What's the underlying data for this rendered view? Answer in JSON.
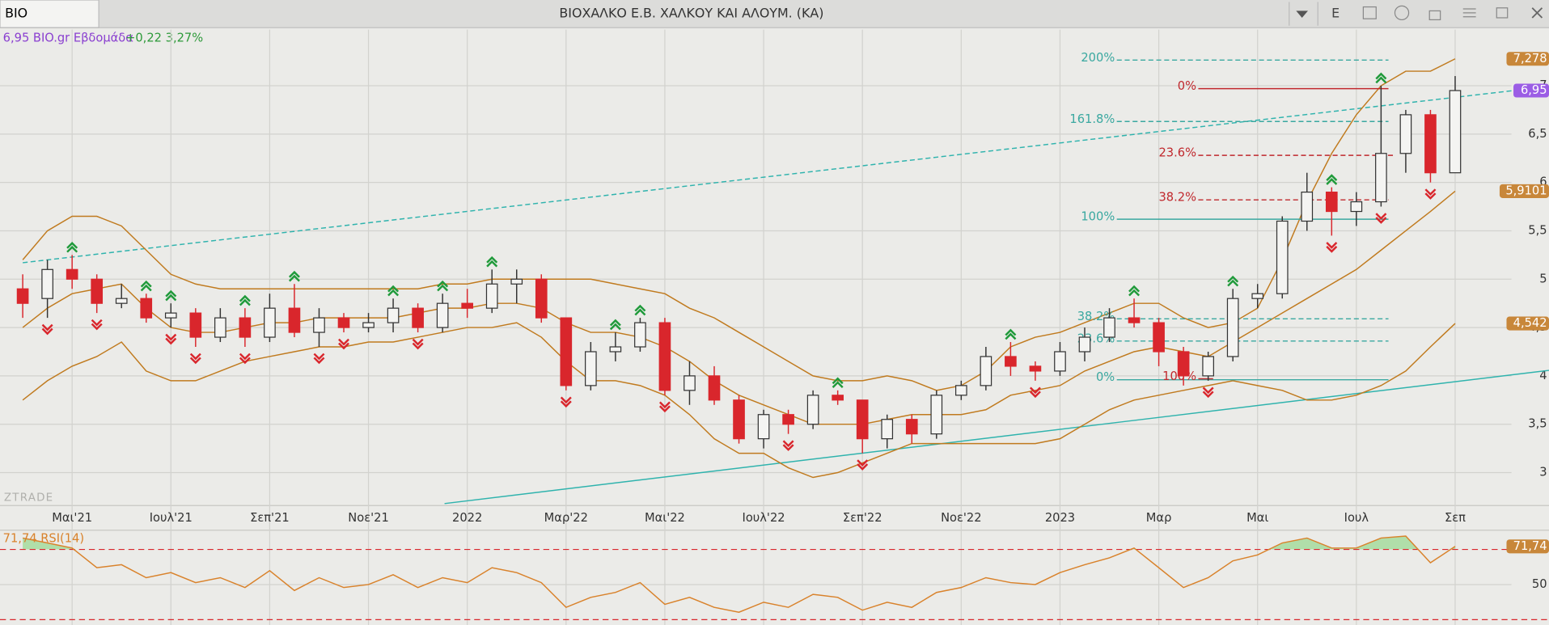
{
  "header": {
    "symbol": "BIO",
    "title": "ΒΙΟΧΑΛΚΟ Ε.Β. ΧΑΛΚΟΥ  ΚΑΙ  ΑΛΟΥΜ. (ΚΑ)",
    "button": "E"
  },
  "info": {
    "quote": "6,95 BIO.gr Εβδομάδα",
    "change": "+0,22 3,27%"
  },
  "watermark": "ZTRADE",
  "chart_data": {
    "type": "candlestick",
    "categories": [
      null,
      null,
      "Μαι'21",
      null,
      null,
      null,
      "Ιουλ'21",
      null,
      null,
      null,
      "Σεπ'21",
      null,
      null,
      null,
      "Νοε'21",
      null,
      null,
      null,
      "2022",
      null,
      null,
      null,
      "Μαρ'22",
      null,
      null,
      null,
      "Μαι'22",
      null,
      null,
      null,
      "Ιουλ'22",
      null,
      null,
      null,
      "Σεπ'22",
      null,
      null,
      null,
      "Νοε'22",
      null,
      null,
      null,
      "2023",
      null,
      null,
      null,
      "Μαρ",
      null,
      null,
      null,
      "Μαι",
      null,
      null,
      null,
      "Ιουλ",
      null,
      null,
      null,
      "Σεπ"
    ],
    "open": [
      4.9,
      4.8,
      5.1,
      5.0,
      4.75,
      4.8,
      4.6,
      4.65,
      4.4,
      4.6,
      4.4,
      4.7,
      4.45,
      4.6,
      4.5,
      4.55,
      4.7,
      4.5,
      4.75,
      4.7,
      4.95,
      5.0,
      4.6,
      3.9,
      4.25,
      4.3,
      4.55,
      3.85,
      4.0,
      3.75,
      3.35,
      3.6,
      3.5,
      3.8,
      3.75,
      3.35,
      3.55,
      3.4,
      3.8,
      3.9,
      4.2,
      4.1,
      4.05,
      4.25,
      4.4,
      4.6,
      4.55,
      4.25,
      4.0,
      4.2,
      4.8,
      4.85,
      5.6,
      5.9,
      5.7,
      5.8,
      6.3,
      6.7,
      6.1
    ],
    "high": [
      5.05,
      5.2,
      5.25,
      5.05,
      4.95,
      4.85,
      4.75,
      4.7,
      4.7,
      4.7,
      4.85,
      4.95,
      4.7,
      4.65,
      4.65,
      4.8,
      4.75,
      4.85,
      4.9,
      5.1,
      5.1,
      5.05,
      4.6,
      4.35,
      4.45,
      4.6,
      4.6,
      4.15,
      4.1,
      3.8,
      3.65,
      3.65,
      3.85,
      3.85,
      3.75,
      3.6,
      3.6,
      3.85,
      3.95,
      4.3,
      4.35,
      4.15,
      4.35,
      4.5,
      4.7,
      4.8,
      4.6,
      4.3,
      4.25,
      4.9,
      4.95,
      5.65,
      6.1,
      5.95,
      5.9,
      7.0,
      6.75,
      6.75,
      7.1
    ],
    "low": [
      4.6,
      4.6,
      4.9,
      4.65,
      4.7,
      4.55,
      4.5,
      4.3,
      4.35,
      4.3,
      4.35,
      4.4,
      4.3,
      4.45,
      4.45,
      4.45,
      4.45,
      4.45,
      4.6,
      4.65,
      4.75,
      4.55,
      3.85,
      3.85,
      4.15,
      4.25,
      3.8,
      3.7,
      3.7,
      3.3,
      3.25,
      3.4,
      3.45,
      3.7,
      3.2,
      3.25,
      3.3,
      3.35,
      3.75,
      3.85,
      4.0,
      3.95,
      4.0,
      4.15,
      4.35,
      4.5,
      4.1,
      3.9,
      3.95,
      4.15,
      4.7,
      4.8,
      5.5,
      5.45,
      5.55,
      5.75,
      6.1,
      6.0,
      6.1
    ],
    "close": [
      4.75,
      5.1,
      5.0,
      4.75,
      4.8,
      4.6,
      4.65,
      4.4,
      4.6,
      4.4,
      4.7,
      4.45,
      4.6,
      4.5,
      4.55,
      4.7,
      4.5,
      4.75,
      4.7,
      4.95,
      5.0,
      4.6,
      3.9,
      4.25,
      4.3,
      4.55,
      3.85,
      4.0,
      3.75,
      3.35,
      3.6,
      3.5,
      3.8,
      3.75,
      3.35,
      3.55,
      3.4,
      3.8,
      3.9,
      4.2,
      4.1,
      4.05,
      4.25,
      4.4,
      4.6,
      4.55,
      4.25,
      4.0,
      4.2,
      4.8,
      4.85,
      5.6,
      5.9,
      5.7,
      5.8,
      6.3,
      6.7,
      6.1,
      6.95
    ],
    "up_color": "#f4f4f2",
    "down_color": "#d9262c",
    "bollinger": {
      "color": "#c07a1e",
      "upper": [
        5.2,
        5.5,
        5.65,
        5.65,
        5.55,
        5.3,
        5.05,
        4.95,
        4.9,
        4.9,
        4.9,
        4.9,
        4.9,
        4.9,
        4.9,
        4.9,
        4.9,
        4.95,
        4.95,
        5.0,
        5.0,
        5.0,
        5.0,
        5.0,
        4.95,
        4.9,
        4.85,
        4.7,
        4.6,
        4.45,
        4.3,
        4.15,
        4.0,
        3.95,
        3.95,
        4.0,
        3.95,
        3.85,
        3.9,
        4.05,
        4.3,
        4.4,
        4.45,
        4.55,
        4.65,
        4.75,
        4.75,
        4.6,
        4.5,
        4.55,
        4.7,
        5.2,
        5.8,
        6.3,
        6.7,
        7.0,
        7.15,
        7.15,
        7.278
      ],
      "middle": [
        4.5,
        4.7,
        4.85,
        4.9,
        4.95,
        4.7,
        4.5,
        4.45,
        4.45,
        4.5,
        4.55,
        4.55,
        4.6,
        4.6,
        4.6,
        4.6,
        4.65,
        4.7,
        4.7,
        4.75,
        4.75,
        4.7,
        4.55,
        4.45,
        4.45,
        4.4,
        4.3,
        4.15,
        3.95,
        3.8,
        3.7,
        3.6,
        3.5,
        3.5,
        3.5,
        3.55,
        3.6,
        3.6,
        3.6,
        3.65,
        3.8,
        3.85,
        3.9,
        4.05,
        4.15,
        4.25,
        4.3,
        4.25,
        4.2,
        4.35,
        4.5,
        4.65,
        4.8,
        4.95,
        5.1,
        5.3,
        5.5,
        5.7,
        5.9101
      ],
      "lower": [
        3.75,
        3.95,
        4.1,
        4.2,
        4.35,
        4.05,
        3.95,
        3.95,
        4.05,
        4.15,
        4.2,
        4.25,
        4.3,
        4.3,
        4.35,
        4.35,
        4.4,
        4.45,
        4.5,
        4.5,
        4.55,
        4.4,
        4.15,
        3.95,
        3.95,
        3.9,
        3.8,
        3.6,
        3.35,
        3.2,
        3.2,
        3.05,
        2.95,
        3.0,
        3.1,
        3.2,
        3.3,
        3.3,
        3.3,
        3.3,
        3.3,
        3.3,
        3.35,
        3.5,
        3.65,
        3.75,
        3.8,
        3.85,
        3.9,
        3.95,
        3.9,
        3.85,
        3.75,
        3.75,
        3.8,
        3.9,
        4.05,
        4.3,
        4.542
      ]
    },
    "up_markers": [
      2,
      5,
      6,
      9,
      11,
      15,
      17,
      19,
      24,
      25,
      33,
      40,
      45,
      49,
      53,
      55
    ],
    "down_markers": [
      1,
      3,
      6,
      7,
      9,
      12,
      13,
      16,
      22,
      26,
      31,
      34,
      41,
      48,
      53,
      55,
      57
    ],
    "trendlines": [
      {
        "from": {
          "index": 0,
          "value": 5.17
        },
        "to": {
          "index": 58,
          "value": 6.88
        },
        "color": "#2fb3ad",
        "dashed": true
      },
      {
        "from": {
          "index": 17.08,
          "value": 2.68
        },
        "to": {
          "index": 58,
          "value": 3.94
        },
        "color": "#2fb3ad",
        "dashed": false
      }
    ],
    "fib_levels": [
      {
        "label": "200%",
        "value": 7.265,
        "from": 44.3,
        "to": 55.3,
        "color": "#3aa8a0",
        "dashed": true
      },
      {
        "label": "0%",
        "value": 6.97,
        "from": 47.6,
        "to": 55.3,
        "color": "#c0282d",
        "dashed": false
      },
      {
        "label": "161.8%",
        "value": 6.63,
        "from": 44.3,
        "to": 55.3,
        "color": "#3aa8a0",
        "dashed": true
      },
      {
        "label": "23.6%",
        "value": 6.28,
        "from": 47.6,
        "to": 55.5,
        "color": "#c0282d",
        "dashed": true
      },
      {
        "label": "38.2%",
        "value": 5.82,
        "from": 47.6,
        "to": 55.3,
        "color": "#c0282d",
        "dashed": true
      },
      {
        "label": "100%",
        "value": 5.62,
        "from": 44.3,
        "to": 55.3,
        "color": "#3aa8a0",
        "dashed": false
      },
      {
        "label": "38.2%",
        "value": 4.59,
        "from": 44.3,
        "to": 55.3,
        "color": "#3aa8a0",
        "dashed": true
      },
      {
        "label": "23.6%",
        "value": 4.36,
        "from": 44.3,
        "to": 55.3,
        "color": "#3aa8a0",
        "dashed": true
      },
      {
        "label": "0%",
        "value": 3.96,
        "from": 44.3,
        "to": 55.3,
        "color": "#3aa8a0",
        "dashed": false
      },
      {
        "label": "100%",
        "value": 3.97,
        "from": 47.6,
        "to": 48.2,
        "color": "#c0282d",
        "dashed": false
      }
    ],
    "ylim": [
      2.68,
      7.58
    ],
    "yticks": [
      3,
      {
        "value": 3.5,
        "label": "3,5"
      },
      4,
      {
        "value": 4.5,
        "label": "4,5"
      },
      5,
      {
        "value": 5.5,
        "label": "5,5"
      },
      6,
      {
        "value": 6.5,
        "label": "6,5"
      },
      7
    ],
    "grid": true,
    "badges": [
      {
        "value": 7.278,
        "label": "7,278",
        "color": "#c8873a"
      },
      {
        "value": 6.95,
        "label": "6,95",
        "color": "#9b5de5"
      },
      {
        "value": 5.9101,
        "label": "5,9101",
        "color": "#c8873a"
      },
      {
        "value": 4.542,
        "label": "4,542",
        "color": "#c8873a"
      }
    ],
    "rsi": {
      "label": "71,74 RSI(14)",
      "color": "#d9822b",
      "fill": "#a6dc9e",
      "values": [
        76.5,
        73.7,
        70.8,
        59.6,
        61.3,
        53.9,
        56.8,
        51.1,
        53.9,
        48.3,
        57.9,
        46.6,
        53.9,
        48.3,
        50,
        55.6,
        48.3,
        53.9,
        51.1,
        59.6,
        56.8,
        51.1,
        37.0,
        42.7,
        45.5,
        51.1,
        38.7,
        42.7,
        37.0,
        34.2,
        39.9,
        37.0,
        44.4,
        42.7,
        35.4,
        39.9,
        37.0,
        45.5,
        48.3,
        53.9,
        51.1,
        50,
        56.8,
        61.3,
        65.2,
        70.8,
        59.6,
        48.3,
        53.9,
        63.5,
        66.9,
        73.7,
        76.5,
        70.8,
        70.8,
        76.5,
        77.6,
        62.4,
        71.74
      ],
      "ylim": [
        27.5,
        80.4
      ],
      "yticks": [
        50
      ],
      "levels": [
        70,
        30
      ],
      "level_color": "#d9262c",
      "badge": {
        "value": 71.74,
        "label": "71,74",
        "color": "#c8873a"
      }
    }
  }
}
